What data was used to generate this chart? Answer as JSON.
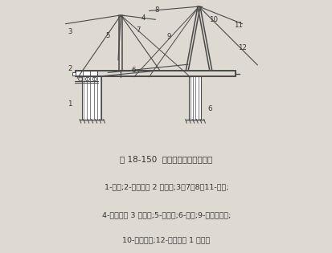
{
  "title": "图 18-150  简易型钢导梁纵向移运",
  "caption_line1": "1-平车;2-牵引绳至 2 号绞车;3、7、8、11-风缆;",
  "caption_line2": "4-牵引绳至 3 号绞车;5-木门架;6-导梁;9-牵引钢丝绳;",
  "caption_line3": "10-人字扒杆;12-牵引绳至 1 号绞车",
  "bg_color": "#dedad2",
  "line_color": "#4a4a4a",
  "text_color": "#333333",
  "fig_width": 4.14,
  "fig_height": 3.15,
  "dpi": 100
}
